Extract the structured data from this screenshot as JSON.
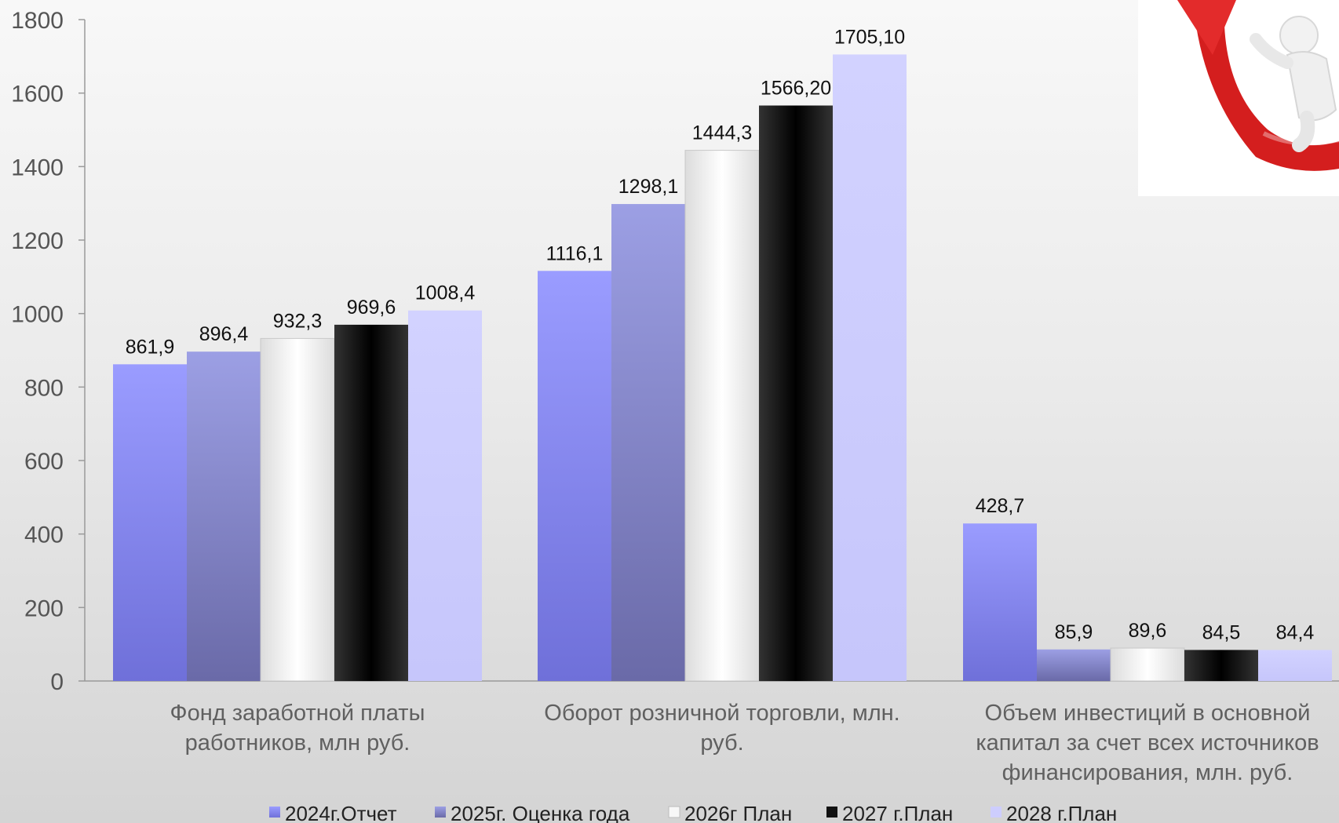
{
  "chart_data": {
    "type": "bar",
    "title": "",
    "xlabel": "",
    "ylabel": "",
    "ylim": [
      0,
      1800
    ],
    "yticks": [
      0,
      200,
      400,
      600,
      800,
      1000,
      1200,
      1400,
      1600,
      1800
    ],
    "ytick_labels": [
      "0",
      "200",
      "400",
      "600",
      "800",
      "1000",
      "1200",
      "1400",
      "1600",
      "1800"
    ],
    "grid": false,
    "legend_position": "bottom",
    "categories": [
      [
        "Фонд заработной платы",
        "работников, млн руб."
      ],
      [
        "Оборот розничной торговли, млн.",
        "руб."
      ],
      [
        "Объем инвестиций в основной",
        "капитал за счет всех источников",
        "финансирования, млн. руб."
      ]
    ],
    "series": [
      {
        "name": "2024г.Отчет",
        "values": [
          861.9,
          1116.1,
          428.7
        ],
        "labels": [
          "861,9",
          "1116,1",
          "428,7"
        ],
        "color": "#8a8cf0"
      },
      {
        "name": "2025г. Оценка года",
        "values": [
          896.4,
          1298.1,
          85.9
        ],
        "labels": [
          "896,4",
          "1298,1",
          "85,9"
        ],
        "color": "#8c8fd2"
      },
      {
        "name": "2026г План",
        "values": [
          932.3,
          1444.3,
          89.6
        ],
        "labels": [
          "932,3",
          "1444,3",
          "89,6"
        ],
        "color": "#f4f4f4"
      },
      {
        "name": "2027 г.План",
        "values": [
          969.6,
          1566.2,
          84.5
        ],
        "labels": [
          "969,6",
          "1566,20",
          "84,5"
        ],
        "color": "#111111"
      },
      {
        "name": "2028 г.План",
        "values": [
          1008.4,
          1705.1,
          84.4
        ],
        "labels": [
          "1008,4",
          "1705,10",
          "84,4"
        ],
        "color": "#cdcdfd"
      }
    ]
  },
  "decoration": {
    "icon": "person-on-red-arrow-icon"
  }
}
